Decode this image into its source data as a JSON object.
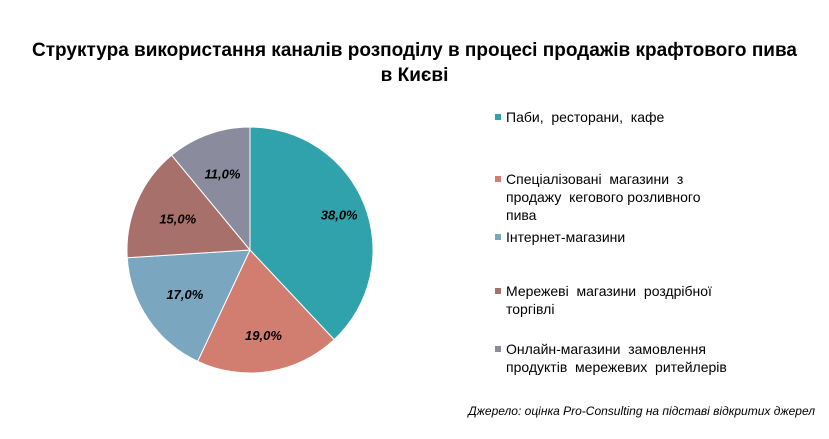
{
  "chart_data": {
    "type": "pie",
    "title": "Структура використання каналів розподілу в процесі продажів крафтового пива в Києві",
    "title_lines": [
      "Структура використання каналів розподілу в процесі продажів крафтового пива",
      "в Києві"
    ],
    "slices": [
      {
        "name": "Паби, ресторани, кафе",
        "value": 38.0,
        "label": "38,0%",
        "color": "#2fa2ac"
      },
      {
        "name": "Спеціалізовані магазини з продажу кегового розливного пива",
        "value": 19.0,
        "label": "19,0%",
        "color": "#d17e70"
      },
      {
        "name": "Інтернет-магазини",
        "value": 17.0,
        "label": "17,0%",
        "color": "#7aa6bf"
      },
      {
        "name": "Мережеві магазини роздрібної торгівлі",
        "value": 15.0,
        "label": "15,0%",
        "color": "#a8706b"
      },
      {
        "name": "Онлайн-магазини замовлення продуктів мережевих ритейлерів",
        "value": 11.0,
        "label": "11,0%",
        "color": "#8a8c9e"
      }
    ],
    "legend_position": "right"
  },
  "legend": [
    {
      "lines": [
        "Паби,  ресторани,  кафе"
      ]
    },
    {
      "lines": [
        "Спеціалізовані  магазини  з",
        "продажу  кегового розливного",
        "пива"
      ]
    },
    {
      "lines": [
        "Інтернет-магазини"
      ]
    },
    {
      "lines": [
        "Мережеві  магазини  роздрібної",
        "торгівлі"
      ]
    },
    {
      "lines": [
        "Онлайн-магазини  замовлення",
        "продуктів  мережевих  ритейлерів"
      ]
    }
  ],
  "source": "Джерело: оцінка Pro-Consulting на підставі відкритих джерел"
}
